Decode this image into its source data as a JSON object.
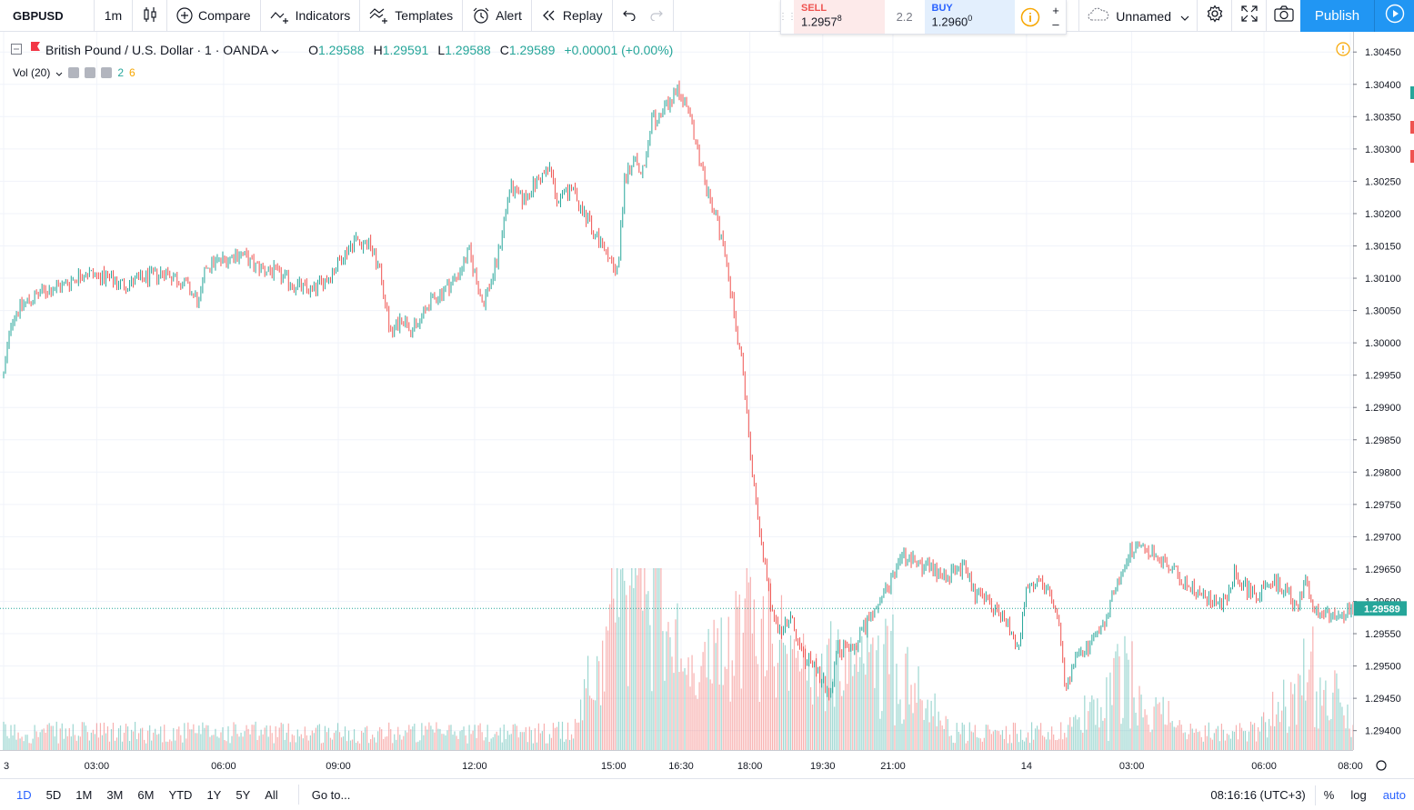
{
  "toolbar": {
    "symbol": "GBPUSD",
    "interval": "1m",
    "compare": "Compare",
    "indicators": "Indicators",
    "templates": "Templates",
    "alert": "Alert",
    "replay": "Replay",
    "layout_name": "Unnamed",
    "publish": "Publish"
  },
  "trade": {
    "sell_label": "SELL",
    "sell_price": "1.2957",
    "sell_sup": "8",
    "spread": "2.2",
    "buy_label": "BUY",
    "buy_price": "1.2960",
    "buy_sup": "0"
  },
  "legend": {
    "title": "British Pound / U.S. Dollar · 1 · OANDA",
    "o_label": "O",
    "o": "1.29588",
    "h_label": "H",
    "h": "1.29591",
    "l_label": "L",
    "l": "1.29588",
    "c_label": "C",
    "c": "1.29589",
    "change": "+0.00001 (+0.00%)",
    "volume_label": "Vol (20)",
    "vol_val1": "2",
    "vol_val2": "6"
  },
  "colors": {
    "up": "#26a69a",
    "down": "#ef5350",
    "grid": "#f0f3fa",
    "price_line": "#26a69a",
    "accent": "#2962ff",
    "publish": "#2196f3"
  },
  "chart_data": {
    "type": "line",
    "title": "British Pound / U.S. Dollar · 1 · OANDA",
    "ylim": [
      1.2937,
      1.3047
    ],
    "y_ticks": [
      "1.30450",
      "1.30400",
      "1.30350",
      "1.30300",
      "1.30250",
      "1.30200",
      "1.30150",
      "1.30100",
      "1.30050",
      "1.30000",
      "1.29950",
      "1.29900",
      "1.29850",
      "1.29800",
      "1.29750",
      "1.29700",
      "1.29650",
      "1.29600",
      "1.29550",
      "1.29500",
      "1.29450",
      "1.29400"
    ],
    "x_ticks": [
      {
        "label": "3",
        "t": 0
      },
      {
        "label": "03:00",
        "t": 0.069
      },
      {
        "label": "06:00",
        "t": 0.163
      },
      {
        "label": "09:00",
        "t": 0.248
      },
      {
        "label": "12:00",
        "t": 0.349
      },
      {
        "label": "15:00",
        "t": 0.452
      },
      {
        "label": "16:30",
        "t": 0.502
      },
      {
        "label": "18:00",
        "t": 0.553
      },
      {
        "label": "19:30",
        "t": 0.607
      },
      {
        "label": "21:00",
        "t": 0.659
      },
      {
        "label": "14",
        "t": 0.758
      },
      {
        "label": "03:00",
        "t": 0.836
      },
      {
        "label": "06:00",
        "t": 0.934
      },
      {
        "label": "08:00",
        "t": 0.998
      }
    ],
    "current_price": "1.29589",
    "current_value": 1.29589,
    "series": [
      {
        "name": "GBPUSD",
        "points": [
          [
            0,
            1.2995
          ],
          [
            0.006,
            1.3004
          ],
          [
            0.015,
            1.3006
          ],
          [
            0.03,
            1.3008
          ],
          [
            0.045,
            1.3009
          ],
          [
            0.06,
            1.3011
          ],
          [
            0.075,
            1.301
          ],
          [
            0.09,
            1.3009
          ],
          [
            0.105,
            1.301
          ],
          [
            0.12,
            1.3011
          ],
          [
            0.135,
            1.3009
          ],
          [
            0.145,
            1.3006
          ],
          [
            0.15,
            1.3012
          ],
          [
            0.165,
            1.3013
          ],
          [
            0.175,
            1.3014
          ],
          [
            0.185,
            1.3012
          ],
          [
            0.2,
            1.3011
          ],
          [
            0.215,
            1.3009
          ],
          [
            0.228,
            1.3008
          ],
          [
            0.24,
            1.301
          ],
          [
            0.25,
            1.3013
          ],
          [
            0.26,
            1.3016
          ],
          [
            0.272,
            1.3015
          ],
          [
            0.28,
            1.301
          ],
          [
            0.287,
            1.3001
          ],
          [
            0.295,
            1.3004
          ],
          [
            0.305,
            1.3002
          ],
          [
            0.315,
            1.3006
          ],
          [
            0.325,
            1.3008
          ],
          [
            0.335,
            1.301
          ],
          [
            0.345,
            1.3014
          ],
          [
            0.355,
            1.3006
          ],
          [
            0.365,
            1.3012
          ],
          [
            0.37,
            1.3018
          ],
          [
            0.375,
            1.3024
          ],
          [
            0.385,
            1.3022
          ],
          [
            0.395,
            1.3025
          ],
          [
            0.405,
            1.3027
          ],
          [
            0.41,
            1.3022
          ],
          [
            0.42,
            1.3024
          ],
          [
            0.43,
            1.302
          ],
          [
            0.44,
            1.3016
          ],
          [
            0.448,
            1.3013
          ],
          [
            0.455,
            1.3011
          ],
          [
            0.46,
            1.3025
          ],
          [
            0.468,
            1.3029
          ],
          [
            0.473,
            1.3026
          ],
          [
            0.48,
            1.3034
          ],
          [
            0.488,
            1.3036
          ],
          [
            0.495,
            1.3038
          ],
          [
            0.5,
            1.3039
          ],
          [
            0.51,
            1.3034
          ],
          [
            0.518,
            1.3026
          ],
          [
            0.526,
            1.3021
          ],
          [
            0.534,
            1.3014
          ],
          [
            0.541,
            1.3005
          ],
          [
            0.548,
            1.2995
          ],
          [
            0.552,
            1.2985
          ],
          [
            0.558,
            1.2975
          ],
          [
            0.563,
            1.2967
          ],
          [
            0.568,
            1.296
          ],
          [
            0.575,
            1.2955
          ],
          [
            0.583,
            1.2958
          ],
          [
            0.59,
            1.2952
          ],
          [
            0.6,
            1.295
          ],
          [
            0.608,
            1.2947
          ],
          [
            0.613,
            1.2945
          ],
          [
            0.618,
            1.2953
          ],
          [
            0.627,
            1.2952
          ],
          [
            0.635,
            1.2955
          ],
          [
            0.645,
            1.2958
          ],
          [
            0.655,
            1.2962
          ],
          [
            0.665,
            1.2967
          ],
          [
            0.675,
            1.2966
          ],
          [
            0.688,
            1.2965
          ],
          [
            0.7,
            1.2964
          ],
          [
            0.712,
            1.2965
          ],
          [
            0.72,
            1.2961
          ],
          [
            0.735,
            1.2959
          ],
          [
            0.745,
            1.2956
          ],
          [
            0.752,
            1.2953
          ],
          [
            0.758,
            1.2962
          ],
          [
            0.765,
            1.2963
          ],
          [
            0.775,
            1.2961
          ],
          [
            0.783,
            1.2955
          ],
          [
            0.787,
            1.2946
          ],
          [
            0.795,
            1.2951
          ],
          [
            0.805,
            1.2953
          ],
          [
            0.815,
            1.2956
          ],
          [
            0.825,
            1.2963
          ],
          [
            0.835,
            1.2968
          ],
          [
            0.845,
            1.2968
          ],
          [
            0.855,
            1.2967
          ],
          [
            0.865,
            1.2965
          ],
          [
            0.875,
            1.2963
          ],
          [
            0.885,
            1.2961
          ],
          [
            0.895,
            1.296
          ],
          [
            0.905,
            1.296
          ],
          [
            0.912,
            1.2964
          ],
          [
            0.92,
            1.2962
          ],
          [
            0.93,
            1.2961
          ],
          [
            0.94,
            1.2963
          ],
          [
            0.95,
            1.2962
          ],
          [
            0.958,
            1.2959
          ],
          [
            0.965,
            1.2963
          ],
          [
            0.972,
            1.2959
          ],
          [
            0.98,
            1.2958
          ],
          [
            0.99,
            1.2957
          ],
          [
            0.998,
            1.29589
          ]
        ]
      }
    ],
    "volume": {
      "name": "Vol (20)",
      "max": 100,
      "typical": 12,
      "spike_at": [
        0.455,
        0.468,
        0.48,
        0.55,
        0.56,
        0.61,
        0.66,
        0.83,
        0.97
      ]
    }
  },
  "bottom": {
    "ranges": [
      "1D",
      "5D",
      "1M",
      "3M",
      "6M",
      "YTD",
      "1Y",
      "5Y",
      "All"
    ],
    "active_range": "1D",
    "goto": "Go to...",
    "clock": "08:16:16 (UTC+3)",
    "percent": "%",
    "log": "log",
    "auto": "auto"
  }
}
